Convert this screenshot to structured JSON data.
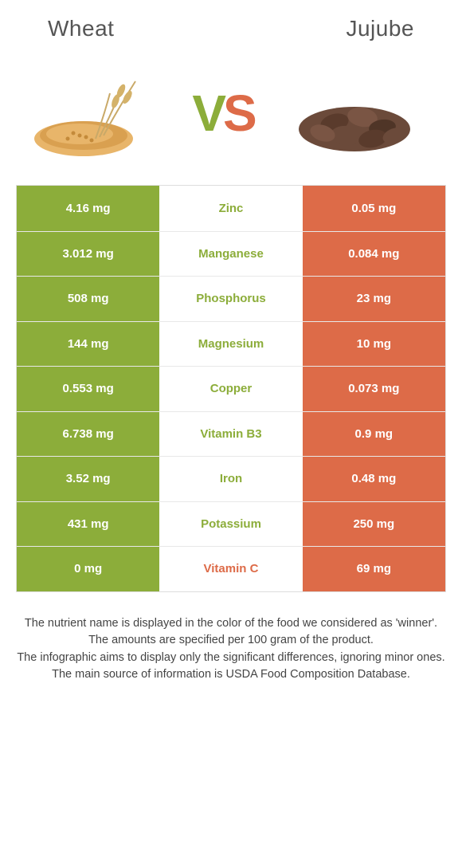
{
  "header": {
    "left_title": "Wheat",
    "right_title": "Jujube"
  },
  "colors": {
    "left_bg": "#8cad3a",
    "right_bg": "#dd6b48",
    "left_text": "#8cad3a",
    "right_text": "#dd6b48",
    "row_border": "#e8e8e8",
    "white": "#ffffff"
  },
  "vs": {
    "v": "V",
    "s": "S"
  },
  "rows": [
    {
      "left": "4.16 mg",
      "name": "Zinc",
      "right": "0.05 mg",
      "winner": "left"
    },
    {
      "left": "3.012 mg",
      "name": "Manganese",
      "right": "0.084 mg",
      "winner": "left"
    },
    {
      "left": "508 mg",
      "name": "Phosphorus",
      "right": "23 mg",
      "winner": "left"
    },
    {
      "left": "144 mg",
      "name": "Magnesium",
      "right": "10 mg",
      "winner": "left"
    },
    {
      "left": "0.553 mg",
      "name": "Copper",
      "right": "0.073 mg",
      "winner": "left"
    },
    {
      "left": "6.738 mg",
      "name": "Vitamin B3",
      "right": "0.9 mg",
      "winner": "left"
    },
    {
      "left": "3.52 mg",
      "name": "Iron",
      "right": "0.48 mg",
      "winner": "left"
    },
    {
      "left": "431 mg",
      "name": "Potassium",
      "right": "250 mg",
      "winner": "left"
    },
    {
      "left": "0 mg",
      "name": "Vitamin C",
      "right": "69 mg",
      "winner": "right"
    }
  ],
  "footer": {
    "line1": "The nutrient name is displayed in the color of the food we considered as 'winner'.",
    "line2": "The amounts are specified per 100 gram of the product.",
    "line3": "The infographic aims to display only the significant differences, ignoring minor ones.",
    "line4": "The main source of information is USDA Food Composition Database."
  }
}
